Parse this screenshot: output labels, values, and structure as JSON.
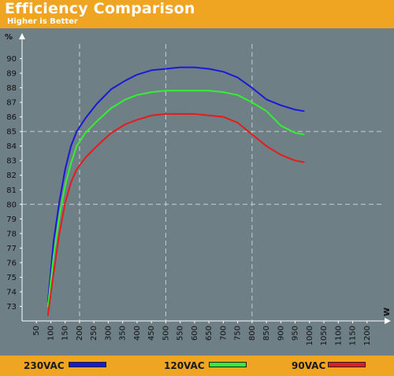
{
  "header": {
    "title": "Efficiency Comparison",
    "subtitle": "Higher is Better"
  },
  "chart_data": {
    "type": "line",
    "title": "Efficiency Comparison",
    "subtitle": "Higher is Better",
    "ylabel": "%",
    "xlabel": "W",
    "xlim": [
      0,
      1250
    ],
    "ylim": [
      72,
      91
    ],
    "x_ticks": [
      50,
      100,
      150,
      200,
      250,
      300,
      350,
      400,
      450,
      500,
      550,
      600,
      650,
      700,
      750,
      800,
      850,
      900,
      950,
      1000,
      1050,
      1100,
      1150,
      1200
    ],
    "y_ticks": [
      73,
      74,
      75,
      76,
      77,
      78,
      79,
      80,
      81,
      82,
      83,
      84,
      85,
      86,
      87,
      88,
      89,
      90
    ],
    "grid": {
      "dashed_x": [
        200,
        500,
        800
      ],
      "dashed_y": [
        80,
        85
      ]
    },
    "legend_position": "bottom",
    "series": [
      {
        "name": "230VAC",
        "color": "#1a1ad6",
        "x": [
          90,
          110,
          130,
          150,
          170,
          190,
          220,
          260,
          310,
          360,
          400,
          450,
          500,
          550,
          600,
          650,
          700,
          750,
          800,
          850,
          900,
          950,
          980
        ],
        "values": [
          73.3,
          77.5,
          80.2,
          82.4,
          84.0,
          85.0,
          85.9,
          86.9,
          87.9,
          88.5,
          88.9,
          89.2,
          89.3,
          89.4,
          89.4,
          89.3,
          89.1,
          88.7,
          88.0,
          87.2,
          86.8,
          86.5,
          86.4
        ]
      },
      {
        "name": "120VAC",
        "color": "#33f033",
        "x": [
          90,
          110,
          130,
          150,
          170,
          190,
          220,
          260,
          310,
          360,
          400,
          450,
          500,
          550,
          600,
          650,
          700,
          750,
          800,
          850,
          900,
          950,
          980
        ],
        "values": [
          73.0,
          76.5,
          79.2,
          81.3,
          82.8,
          84.0,
          84.9,
          85.7,
          86.6,
          87.2,
          87.5,
          87.7,
          87.8,
          87.8,
          87.8,
          87.8,
          87.7,
          87.5,
          87.0,
          86.4,
          85.4,
          84.9,
          84.8
        ]
      },
      {
        "name": "90VAC",
        "color": "#e61c1c",
        "x": [
          90,
          110,
          130,
          150,
          170,
          190,
          220,
          260,
          310,
          360,
          400,
          450,
          500,
          550,
          600,
          650,
          700,
          750,
          800,
          850,
          900,
          950,
          980
        ],
        "values": [
          72.4,
          75.3,
          78.0,
          80.1,
          81.5,
          82.4,
          83.2,
          84.0,
          84.9,
          85.5,
          85.8,
          86.1,
          86.2,
          86.2,
          86.2,
          86.1,
          86.0,
          85.6,
          84.8,
          84.0,
          83.4,
          83.0,
          82.9
        ]
      }
    ]
  }
}
